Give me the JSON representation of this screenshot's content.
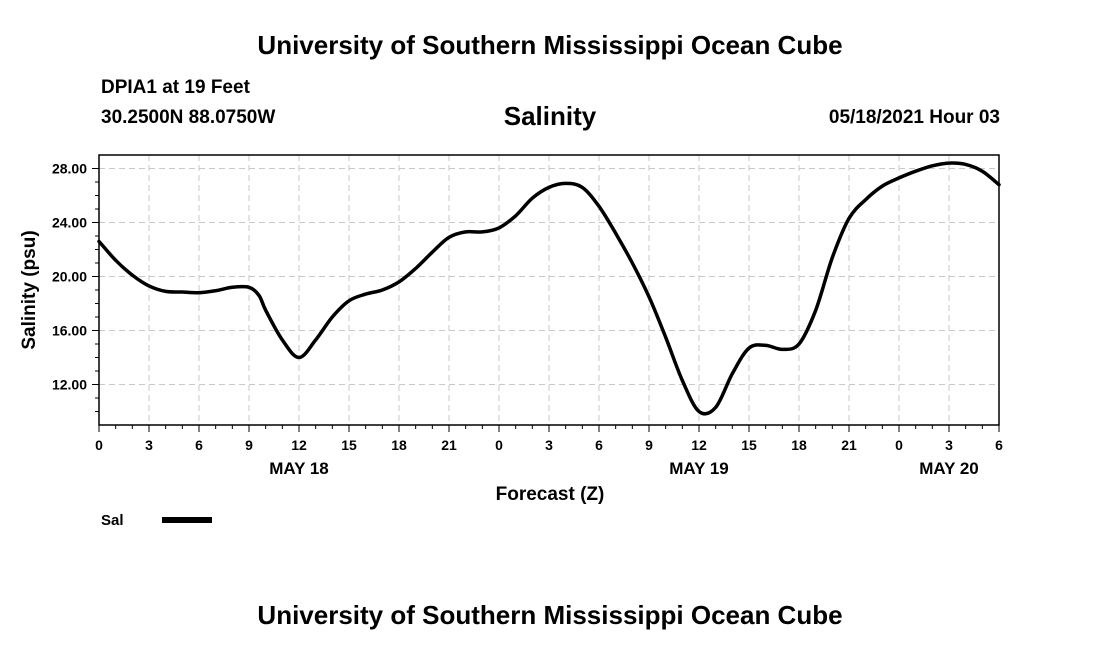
{
  "header": {
    "top_title": "University of Southern Mississippi Ocean Cube",
    "station": "DPIA1 at 19 Feet",
    "coords": "30.2500N  88.0750W",
    "variable_title": "Salinity",
    "date_label": "05/18/2021 Hour 03",
    "bottom_title": "University of Southern Mississippi Ocean Cube"
  },
  "chart_data": {
    "type": "line",
    "title": "Salinity",
    "xlabel": "Forecast (Z)",
    "ylabel": "Salinity (psu)",
    "x_unit": "hours since May 18 00Z",
    "xlim": [
      0,
      54
    ],
    "ylim": [
      9.0,
      29.0
    ],
    "grid": true,
    "legend_position": "bottom-left",
    "x_ticks": [
      {
        "hour": 0,
        "label": "0"
      },
      {
        "hour": 3,
        "label": "3"
      },
      {
        "hour": 6,
        "label": "6"
      },
      {
        "hour": 9,
        "label": "9"
      },
      {
        "hour": 12,
        "label": "12"
      },
      {
        "hour": 15,
        "label": "15"
      },
      {
        "hour": 18,
        "label": "18"
      },
      {
        "hour": 21,
        "label": "21"
      },
      {
        "hour": 24,
        "label": "0"
      },
      {
        "hour": 27,
        "label": "3"
      },
      {
        "hour": 30,
        "label": "6"
      },
      {
        "hour": 33,
        "label": "9"
      },
      {
        "hour": 36,
        "label": "12"
      },
      {
        "hour": 39,
        "label": "15"
      },
      {
        "hour": 42,
        "label": "18"
      },
      {
        "hour": 45,
        "label": "21"
      },
      {
        "hour": 48,
        "label": "0"
      },
      {
        "hour": 51,
        "label": "3"
      },
      {
        "hour": 54,
        "label": "6"
      }
    ],
    "date_labels": [
      {
        "hour": 12,
        "label": "MAY 18"
      },
      {
        "hour": 36,
        "label": "MAY 19"
      },
      {
        "hour": 51,
        "label": "MAY 20"
      }
    ],
    "y_ticks": [
      {
        "value": 12,
        "label": "12.00"
      },
      {
        "value": 16,
        "label": "16.00"
      },
      {
        "value": 20,
        "label": "20.00"
      },
      {
        "value": 24,
        "label": "24.00"
      },
      {
        "value": 28,
        "label": "28.00"
      }
    ],
    "series": [
      {
        "name": "Sal",
        "color": "#000000",
        "x": [
          0,
          1,
          2,
          3,
          4,
          5,
          6,
          7,
          8,
          9,
          9.6,
          10,
          11,
          12,
          13,
          14,
          15,
          16,
          17,
          18,
          19,
          20,
          21,
          22,
          23,
          24,
          25,
          26,
          27,
          28,
          29,
          30,
          31,
          32,
          33,
          34,
          35,
          36,
          37,
          38,
          39,
          40,
          41,
          42,
          43,
          44,
          45,
          46,
          47,
          48,
          49,
          50,
          51,
          52,
          53,
          54
        ],
        "y": [
          22.6,
          21.2,
          20.1,
          19.3,
          18.9,
          18.85,
          18.8,
          18.95,
          19.2,
          19.2,
          18.6,
          17.5,
          15.3,
          14.0,
          15.3,
          17.0,
          18.2,
          18.7,
          19.0,
          19.6,
          20.6,
          21.8,
          22.9,
          23.3,
          23.3,
          23.6,
          24.5,
          25.8,
          26.6,
          26.9,
          26.6,
          25.2,
          23.2,
          21.0,
          18.5,
          15.5,
          12.3,
          10.0,
          10.3,
          12.8,
          14.7,
          14.9,
          14.6,
          15.0,
          17.5,
          21.4,
          24.3,
          25.7,
          26.7,
          27.3,
          27.8,
          28.2,
          28.4,
          28.3,
          27.8,
          26.8
        ]
      }
    ]
  }
}
